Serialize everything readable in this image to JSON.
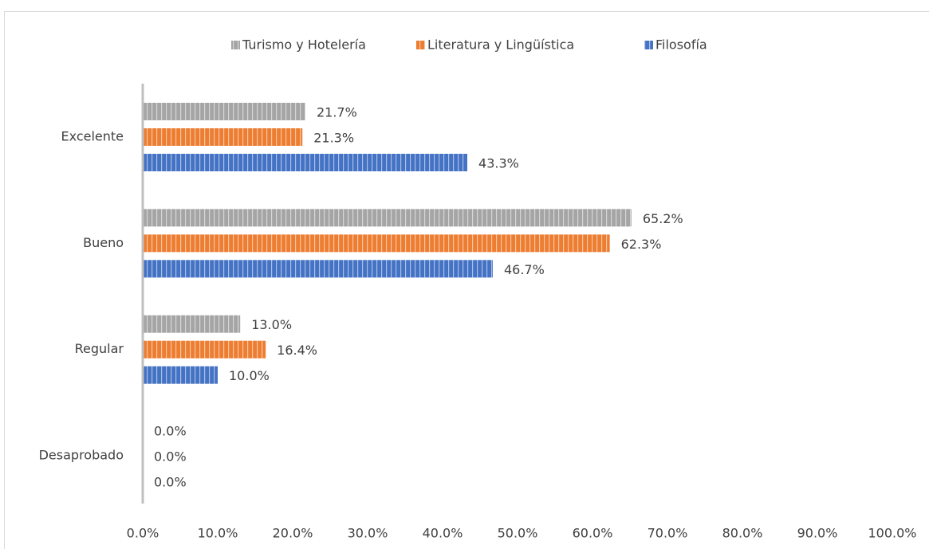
{
  "chart_data": {
    "type": "barh",
    "categories": [
      "Excelente",
      "Bueno",
      "Regular",
      "Desaprobado"
    ],
    "series": [
      {
        "name": "Turismo y Hotelería",
        "color": "#a5a5a5",
        "values": [
          21.7,
          65.2,
          13.0,
          0.0
        ],
        "value_labels": [
          "21.7%",
          "65.2%",
          "13.0%",
          "0.0%"
        ]
      },
      {
        "name": "Literatura y Lingüística",
        "color": "#ed7d31",
        "values": [
          21.3,
          62.3,
          16.4,
          0.0
        ],
        "value_labels": [
          "21.3%",
          "62.3%",
          "16.4%",
          "0.0%"
        ]
      },
      {
        "name": "Filosofía",
        "color": "#4472c4",
        "values": [
          43.3,
          46.7,
          10.0,
          0.0
        ],
        "value_labels": [
          "43.3%",
          "46.7%",
          "10.0%",
          "0.0%"
        ]
      }
    ],
    "xlim": [
      0,
      100
    ],
    "xticks": [
      {
        "value": 0,
        "label": "0.0%"
      },
      {
        "value": 10,
        "label": "10.0%"
      },
      {
        "value": 20,
        "label": "20.0%"
      },
      {
        "value": 30,
        "label": "30.0%"
      },
      {
        "value": 40,
        "label": "40.0%"
      },
      {
        "value": 50,
        "label": "50.0%"
      },
      {
        "value": 60,
        "label": "60.0%"
      },
      {
        "value": 70,
        "label": "70.0%"
      },
      {
        "value": 80,
        "label": "80.0%"
      },
      {
        "value": 90,
        "label": "90.0%"
      },
      {
        "value": 100,
        "label": "100.0%"
      }
    ],
    "grid": false,
    "legend": "top"
  }
}
